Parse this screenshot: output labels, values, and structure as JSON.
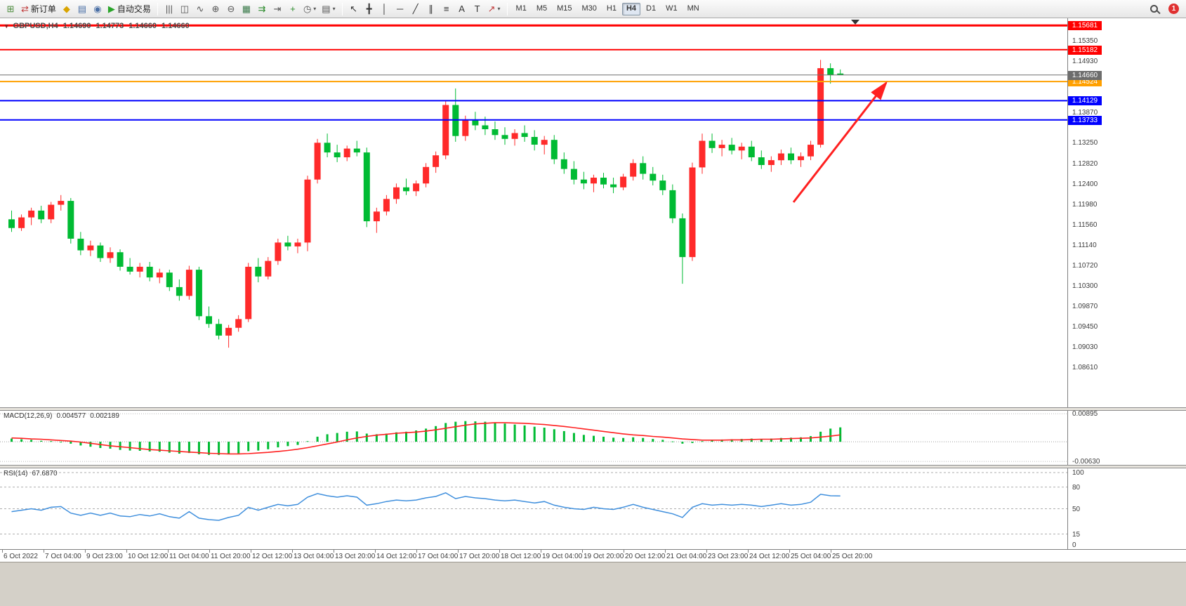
{
  "toolbar": {
    "groups": [
      {
        "items": [
          {
            "name": "new-chart",
            "glyph": "⊞",
            "color": "#4a8a3a"
          },
          {
            "name": "new-order",
            "glyph": "⇄",
            "color": "#c03a3a",
            "label": "新订单"
          },
          {
            "name": "metaeditor",
            "glyph": "◆",
            "color": "#d9a400"
          },
          {
            "name": "market-watch",
            "glyph": "▤",
            "color": "#4a6fa5"
          },
          {
            "name": "navigator",
            "glyph": "◉",
            "color": "#4a6fa5"
          },
          {
            "name": "autotrading",
            "glyph": "▶",
            "color": "#2aa52a",
            "label": "自动交易"
          }
        ]
      },
      {
        "items": [
          {
            "name": "bar-chart",
            "glyph": "|||",
            "color": "#555555"
          },
          {
            "name": "candlestick-chart",
            "glyph": "◫",
            "color": "#555555"
          },
          {
            "name": "line-chart",
            "glyph": "∿",
            "color": "#555555"
          },
          {
            "name": "zoom-in",
            "glyph": "⊕",
            "color": "#555555"
          },
          {
            "name": "zoom-out",
            "glyph": "⊖",
            "color": "#555555"
          },
          {
            "name": "market-depth",
            "glyph": "▦",
            "color": "#3a7a4a"
          },
          {
            "name": "auto-scroll",
            "glyph": "⇉",
            "color": "#2a8a2a"
          },
          {
            "name": "chart-shift",
            "glyph": "⇥",
            "color": "#555555"
          },
          {
            "name": "indicators",
            "glyph": "+",
            "color": "#2a8a2a"
          },
          {
            "name": "periods",
            "glyph": "◷",
            "color": "#555555",
            "caret": true
          },
          {
            "name": "templates",
            "glyph": "▤",
            "color": "#555555",
            "caret": true
          }
        ]
      },
      {
        "items": [
          {
            "name": "cursor",
            "glyph": "↖",
            "color": "#333333"
          },
          {
            "name": "crosshair",
            "glyph": "╋",
            "color": "#333333"
          },
          {
            "name": "vertical-line",
            "glyph": "│",
            "color": "#333333"
          },
          {
            "name": "horizontal-line",
            "glyph": "─",
            "color": "#333333"
          },
          {
            "name": "trendline",
            "glyph": "╱",
            "color": "#333333"
          },
          {
            "name": "channel",
            "glyph": "∥",
            "color": "#333333"
          },
          {
            "name": "fibonacci",
            "glyph": "≡",
            "color": "#333333"
          },
          {
            "name": "text",
            "glyph": "A",
            "color": "#333333"
          },
          {
            "name": "text-label",
            "glyph": "T",
            "color": "#333333"
          },
          {
            "name": "arrows",
            "glyph": "↗",
            "color": "#c03a3a",
            "caret": true
          }
        ]
      }
    ],
    "timeframes": {
      "options": [
        "M1",
        "M5",
        "M15",
        "M30",
        "H1",
        "H4",
        "D1",
        "W1",
        "MN"
      ],
      "active": "H4"
    },
    "notification_count": "1"
  },
  "chart": {
    "type": "candlestick",
    "header": {
      "symbol": "GBPUSD,H4",
      "open": "1.14690",
      "high": "1.14773",
      "low": "1.14660",
      "close": "1.14660"
    },
    "price_axis_labels": [
      "1.15350",
      "1.14930",
      "1.13870",
      "1.13250",
      "1.12820",
      "1.12400",
      "1.11980",
      "1.11560",
      "1.11140",
      "1.10720",
      "1.10300",
      "1.09870",
      "1.09450",
      "1.09030",
      "1.08610"
    ],
    "hlines": [
      {
        "price": 1.15681,
        "label": "1.15681",
        "color": "#ff0000",
        "width": 3
      },
      {
        "price": 1.15182,
        "label": "1.15182",
        "color": "#ff0000",
        "width": 2
      },
      {
        "price": 1.14524,
        "label": "1.14524",
        "color": "#ffa000",
        "width": 2
      },
      {
        "price": 1.14129,
        "label": "1.14129",
        "color": "#0000ff",
        "width": 2
      },
      {
        "price": 1.13733,
        "label": "1.13733",
        "color": "#0000ff",
        "width": 2
      }
    ],
    "bid_line": {
      "price": 1.1466,
      "label": "1.14660",
      "color": "#707070"
    },
    "arrow_object": {
      "color": "#ff2020"
    },
    "candles": {
      "bull_color": "#ff2a2a",
      "bear_color": "#00bb33",
      "data": [
        [
          1.1168,
          1.1186,
          1.1142,
          1.115
        ],
        [
          1.115,
          1.1178,
          1.1144,
          1.1172
        ],
        [
          1.1172,
          1.1192,
          1.1156,
          1.1186
        ],
        [
          1.1186,
          1.1196,
          1.116,
          1.1168
        ],
        [
          1.1168,
          1.1204,
          1.116,
          1.1198
        ],
        [
          1.1198,
          1.1218,
          1.1186,
          1.1206
        ],
        [
          1.1206,
          1.1212,
          1.1118,
          1.1128
        ],
        [
          1.1128,
          1.1142,
          1.1094,
          1.1104
        ],
        [
          1.1104,
          1.1124,
          1.1092,
          1.1114
        ],
        [
          1.1114,
          1.112,
          1.108,
          1.1088
        ],
        [
          1.1088,
          1.111,
          1.1078,
          1.11
        ],
        [
          1.11,
          1.1106,
          1.1062,
          1.107
        ],
        [
          1.107,
          1.1088,
          1.1054,
          1.106
        ],
        [
          1.106,
          1.1078,
          1.1048,
          1.107
        ],
        [
          1.107,
          1.108,
          1.104,
          1.1048
        ],
        [
          1.1048,
          1.1066,
          1.1036,
          1.1058
        ],
        [
          1.1058,
          1.1064,
          1.102,
          1.1028
        ],
        [
          1.1028,
          1.1044,
          1.1,
          1.101
        ],
        [
          1.101,
          1.1072,
          1.1002,
          1.1064
        ],
        [
          1.1064,
          1.107,
          1.096,
          1.0968
        ],
        [
          1.0968,
          1.0988,
          1.0944,
          1.0952
        ],
        [
          1.0952,
          1.0962,
          1.092,
          1.0928
        ],
        [
          1.0928,
          1.095,
          1.0903,
          1.0944
        ],
        [
          1.0944,
          1.097,
          1.0936,
          1.0962
        ],
        [
          1.0962,
          1.1078,
          1.0956,
          1.107
        ],
        [
          1.107,
          1.1088,
          1.1038,
          1.105
        ],
        [
          1.105,
          1.109,
          1.1044,
          1.1082
        ],
        [
          1.1082,
          1.1128,
          1.1074,
          1.112
        ],
        [
          1.112,
          1.1134,
          1.1104,
          1.1112
        ],
        [
          1.1112,
          1.1128,
          1.1098,
          1.112
        ],
        [
          1.112,
          1.1258,
          1.1102,
          1.125
        ],
        [
          1.125,
          1.1334,
          1.1242,
          1.1326
        ],
        [
          1.1326,
          1.1345,
          1.1296,
          1.1306
        ],
        [
          1.1306,
          1.1322,
          1.1286,
          1.1296
        ],
        [
          1.1296,
          1.132,
          1.1288,
          1.1314
        ],
        [
          1.1314,
          1.133,
          1.1298,
          1.1306
        ],
        [
          1.1306,
          1.1316,
          1.1152,
          1.1164
        ],
        [
          1.1164,
          1.1192,
          1.114,
          1.1184
        ],
        [
          1.1184,
          1.1218,
          1.1176,
          1.121
        ],
        [
          1.121,
          1.1242,
          1.12,
          1.1234
        ],
        [
          1.1234,
          1.1252,
          1.1218,
          1.1226
        ],
        [
          1.1226,
          1.1248,
          1.1216,
          1.1242
        ],
        [
          1.1242,
          1.1284,
          1.1234,
          1.1276
        ],
        [
          1.1276,
          1.1308,
          1.1264,
          1.13
        ],
        [
          1.13,
          1.1412,
          1.1292,
          1.1404
        ],
        [
          1.1404,
          1.1438,
          1.1328,
          1.134
        ],
        [
          1.134,
          1.1382,
          1.133,
          1.1372
        ],
        [
          1.1372,
          1.139,
          1.1352,
          1.1362
        ],
        [
          1.1362,
          1.138,
          1.1342,
          1.1354
        ],
        [
          1.1354,
          1.137,
          1.1332,
          1.1342
        ],
        [
          1.1342,
          1.1358,
          1.1322,
          1.1334
        ],
        [
          1.1334,
          1.1354,
          1.132,
          1.1346
        ],
        [
          1.1346,
          1.1362,
          1.1328,
          1.1338
        ],
        [
          1.1338,
          1.1352,
          1.131,
          1.1322
        ],
        [
          1.1322,
          1.134,
          1.1302,
          1.1332
        ],
        [
          1.1332,
          1.1342,
          1.1282,
          1.1292
        ],
        [
          1.1292,
          1.1306,
          1.1262,
          1.1272
        ],
        [
          1.1272,
          1.1288,
          1.124,
          1.125
        ],
        [
          1.125,
          1.1266,
          1.123,
          1.1242
        ],
        [
          1.1242,
          1.126,
          1.1224,
          1.1254
        ],
        [
          1.1254,
          1.1264,
          1.1232,
          1.124
        ],
        [
          1.124,
          1.1254,
          1.1222,
          1.1234
        ],
        [
          1.1234,
          1.1262,
          1.1228,
          1.1256
        ],
        [
          1.1256,
          1.1292,
          1.1248,
          1.1284
        ],
        [
          1.1284,
          1.1298,
          1.125,
          1.1262
        ],
        [
          1.1262,
          1.1276,
          1.1238,
          1.1248
        ],
        [
          1.1248,
          1.126,
          1.1218,
          1.1228
        ],
        [
          1.1228,
          1.124,
          1.116,
          1.117
        ],
        [
          1.117,
          1.118,
          1.1035,
          1.109
        ],
        [
          1.109,
          1.1285,
          1.1082,
          1.1275
        ],
        [
          1.1275,
          1.1345,
          1.1262,
          1.133
        ],
        [
          1.133,
          1.1345,
          1.1305,
          1.1315
        ],
        [
          1.1315,
          1.1332,
          1.1298,
          1.1322
        ],
        [
          1.1322,
          1.1336,
          1.1302,
          1.131
        ],
        [
          1.131,
          1.1326,
          1.1292,
          1.1318
        ],
        [
          1.1318,
          1.133,
          1.1288,
          1.1296
        ],
        [
          1.1296,
          1.131,
          1.1272,
          1.128
        ],
        [
          1.128,
          1.1298,
          1.1266,
          1.129
        ],
        [
          1.129,
          1.1312,
          1.128,
          1.1304
        ],
        [
          1.1304,
          1.1316,
          1.1282,
          1.129
        ],
        [
          1.129,
          1.1306,
          1.1276,
          1.1298
        ],
        [
          1.1298,
          1.133,
          1.129,
          1.1322
        ],
        [
          1.1322,
          1.1497,
          1.1316,
          1.148
        ],
        [
          1.148,
          1.149,
          1.1448,
          1.1466
        ],
        [
          1.1469,
          1.14773,
          1.1466,
          1.1466
        ]
      ]
    },
    "date_labels": [
      "6 Oct 2022",
      "7 Oct 04:00",
      "9 Oct 23:00",
      "10 Oct 12:00",
      "11 Oct 04:00",
      "11 Oct 20:00",
      "12 Oct 12:00",
      "13 Oct 04:00",
      "13 Oct 20:00",
      "14 Oct 12:00",
      "17 Oct 04:00",
      "17 Oct 20:00",
      "18 Oct 12:00",
      "19 Oct 04:00",
      "19 Oct 20:00",
      "20 Oct 12:00",
      "21 Oct 04:00",
      "23 Oct 23:00",
      "24 Oct 12:00",
      "25 Oct 04:00",
      "25 Oct 20:00"
    ]
  },
  "macd": {
    "type": "bar",
    "name": "MACD(12,26,9)",
    "main_value": "0.004577",
    "signal_value": "0.002189",
    "histogram_color": "#00bb33",
    "signal_color": "#ff2020",
    "axis_labels": [
      {
        "label": "0.00895",
        "value": 0.00895
      },
      {
        "label": "-0.00630",
        "value": -0.0063
      }
    ],
    "histogram": [
      0.001,
      0.0008,
      0.0006,
      0.0003,
      0.0002,
      0.0,
      -0.0006,
      -0.0012,
      -0.0016,
      -0.002,
      -0.0022,
      -0.0026,
      -0.0028,
      -0.0029,
      -0.0031,
      -0.0032,
      -0.0035,
      -0.0038,
      -0.0036,
      -0.004,
      -0.0042,
      -0.0042,
      -0.004,
      -0.0037,
      -0.003,
      -0.0028,
      -0.0024,
      -0.0018,
      -0.0014,
      -0.001,
      0.0002,
      0.0016,
      0.0024,
      0.0028,
      0.0032,
      0.0033,
      0.0026,
      0.0024,
      0.0026,
      0.003,
      0.0032,
      0.0036,
      0.0042,
      0.005,
      0.006,
      0.0064,
      0.0066,
      0.0065,
      0.0064,
      0.0062,
      0.0058,
      0.0055,
      0.0052,
      0.0048,
      0.0045,
      0.004,
      0.0034,
      0.0028,
      0.0022,
      0.0019,
      0.0016,
      0.0013,
      0.0012,
      0.0014,
      0.0012,
      0.0009,
      0.0006,
      0.0001,
      -0.0006,
      -0.0004,
      0.0002,
      0.0005,
      0.0007,
      0.0008,
      0.0009,
      0.001,
      0.0009,
      0.001,
      0.0012,
      0.0013,
      0.0014,
      0.0018,
      0.0032,
      0.0042,
      0.0046
    ],
    "signal": [
      0.0012,
      0.0011,
      0.0009,
      0.0008,
      0.0006,
      0.0004,
      0.0002,
      -0.0001,
      -0.0005,
      -0.0009,
      -0.0013,
      -0.0016,
      -0.0019,
      -0.0022,
      -0.0025,
      -0.0027,
      -0.0029,
      -0.0031,
      -0.0033,
      -0.0035,
      -0.0037,
      -0.0038,
      -0.0039,
      -0.0039,
      -0.0038,
      -0.0036,
      -0.0034,
      -0.0031,
      -0.0028,
      -0.0024,
      -0.0019,
      -0.0013,
      -0.0007,
      -0.0001,
      0.0006,
      0.0012,
      0.0017,
      0.0021,
      0.0024,
      0.0027,
      0.0029,
      0.0031,
      0.0034,
      0.0038,
      0.0043,
      0.0048,
      0.0053,
      0.0057,
      0.0059,
      0.0061,
      0.0061,
      0.006,
      0.0059,
      0.0057,
      0.0055,
      0.0052,
      0.0049,
      0.0045,
      0.0041,
      0.0037,
      0.0033,
      0.0029,
      0.0025,
      0.0022,
      0.002,
      0.0017,
      0.0015,
      0.0012,
      0.0009,
      0.0007,
      0.0005,
      0.0005,
      0.0005,
      0.0006,
      0.0006,
      0.0007,
      0.0008,
      0.0008,
      0.0009,
      0.001,
      0.0011,
      0.0012,
      0.0015,
      0.0018,
      0.0022
    ]
  },
  "rsi": {
    "type": "line",
    "name": "RSI(14)",
    "value": "67.6870",
    "line_color": "#3f8fdd",
    "axis_labels": [
      {
        "label": "100",
        "value": 100
      },
      {
        "label": "80",
        "value": 80
      },
      {
        "label": "50",
        "value": 50
      },
      {
        "label": "15",
        "value": 15
      },
      {
        "label": "0",
        "value": 0
      }
    ],
    "levels": [
      100,
      80,
      50,
      15
    ],
    "values": [
      46,
      48,
      50,
      48,
      52,
      53,
      44,
      41,
      44,
      41,
      44,
      40,
      39,
      42,
      40,
      43,
      39,
      37,
      46,
      37,
      35,
      34,
      38,
      41,
      52,
      48,
      52,
      56,
      54,
      56,
      66,
      71,
      68,
      66,
      68,
      66,
      55,
      57,
      60,
      62,
      61,
      62,
      65,
      67,
      72,
      64,
      67,
      65,
      64,
      62,
      61,
      62,
      60,
      58,
      60,
      55,
      52,
      50,
      49,
      52,
      50,
      49,
      52,
      56,
      52,
      49,
      46,
      43,
      38,
      52,
      57,
      55,
      56,
      55,
      56,
      55,
      53,
      55,
      57,
      55,
      56,
      59,
      70,
      68,
      67.7
    ]
  }
}
